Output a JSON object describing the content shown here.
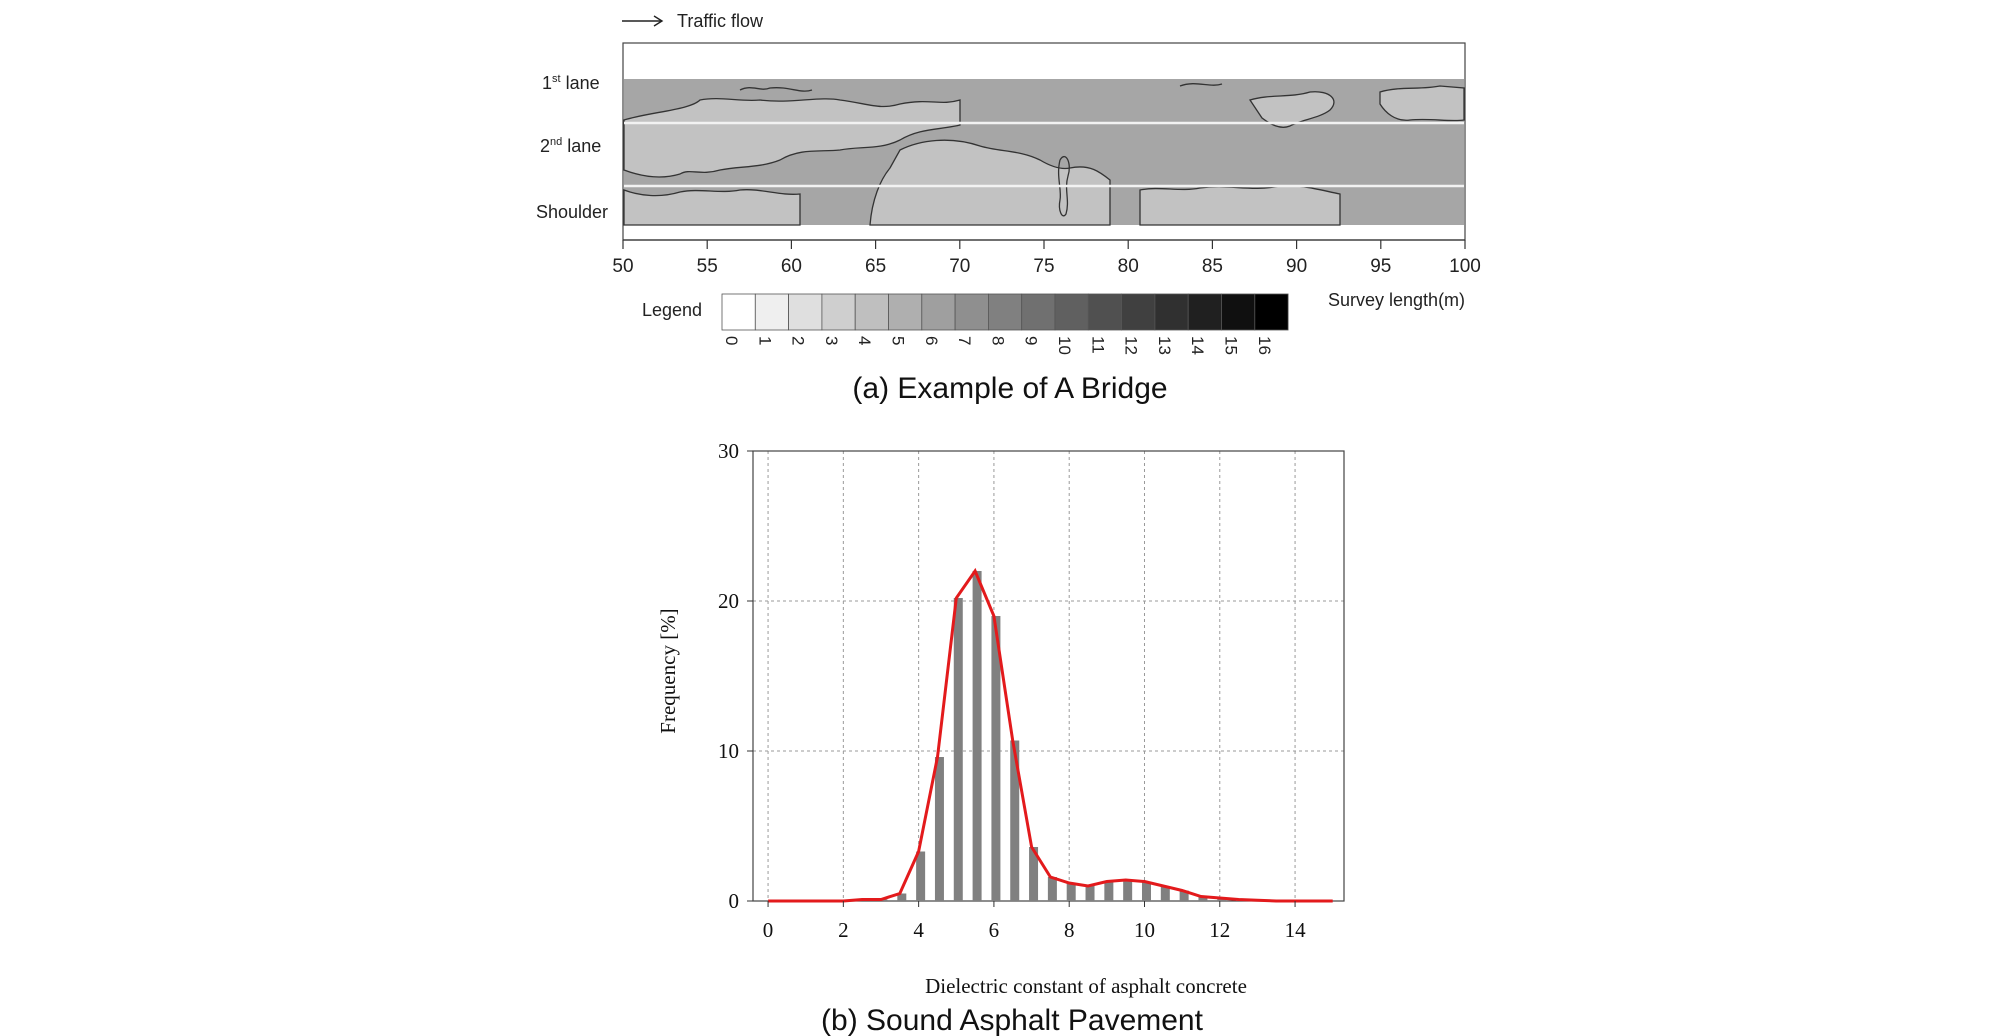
{
  "panel_a": {
    "traffic_flow_label": "Traffic flow",
    "lane_labels": [
      "1",
      "st",
      " lane",
      "2",
      "nd",
      " lane",
      "Shoulder"
    ],
    "lane_label_parts": {
      "first": {
        "num": "1",
        "sup": "st",
        "rest": " lane"
      },
      "second": {
        "num": "2",
        "sup": "nd",
        "rest": " lane"
      },
      "shoulder": "Shoulder"
    },
    "x_axis_label": "Survey length(m)",
    "x_ticks": [
      "50",
      "55",
      "60",
      "65",
      "70",
      "75",
      "80",
      "85",
      "90",
      "95",
      "100"
    ],
    "legend_title": "Legend",
    "legend_levels": [
      "0",
      "1",
      "2",
      "3",
      "4",
      "5",
      "6",
      "7",
      "8",
      "9",
      "10",
      "11",
      "12",
      "13",
      "14",
      "15",
      "16"
    ],
    "caption": "(a) Example of A Bridge"
  },
  "chart_data": [
    {
      "type": "heatmap",
      "title": "",
      "xlabel": "Survey length(m)",
      "xlim": [
        50,
        100
      ],
      "rows": [
        "1st lane",
        "2nd lane",
        "Shoulder"
      ],
      "legend_range": [
        0,
        16
      ],
      "colors": {
        "light_region": "#c2c2c2",
        "dark_region": "#a6a6a6",
        "contour": "#333333"
      }
    },
    {
      "type": "bar",
      "xlabel": "Dielectric constant of asphalt concrete",
      "ylabel": "Frequency  [%]",
      "xlim": [
        0,
        15
      ],
      "ylim": [
        0,
        30
      ],
      "x_ticks": [
        "0",
        "2",
        "4",
        "6",
        "8",
        "10",
        "12",
        "14"
      ],
      "y_ticks": [
        "0",
        "10",
        "20",
        "30"
      ],
      "grid": true,
      "x": [
        0,
        0.5,
        1,
        1.5,
        2,
        2.5,
        3,
        3.5,
        4,
        4.5,
        5,
        5.5,
        6,
        6.5,
        7,
        7.5,
        8,
        8.5,
        9,
        9.5,
        10,
        10.5,
        11,
        11.5,
        12,
        12.5,
        13,
        13.5,
        14,
        14.5,
        15
      ],
      "values": [
        0,
        0,
        0,
        0,
        0,
        0.1,
        0.1,
        0.5,
        3.3,
        9.6,
        20.2,
        22.0,
        19.0,
        10.7,
        3.6,
        1.6,
        1.2,
        1.0,
        1.3,
        1.4,
        1.3,
        1.0,
        0.7,
        0.3,
        0.2,
        0.1,
        0.05,
        0,
        0,
        0,
        0
      ],
      "curve_color": "#e31a1c",
      "bar_color": "#808080",
      "caption": "(b) Sound Asphalt Pavement"
    }
  ]
}
